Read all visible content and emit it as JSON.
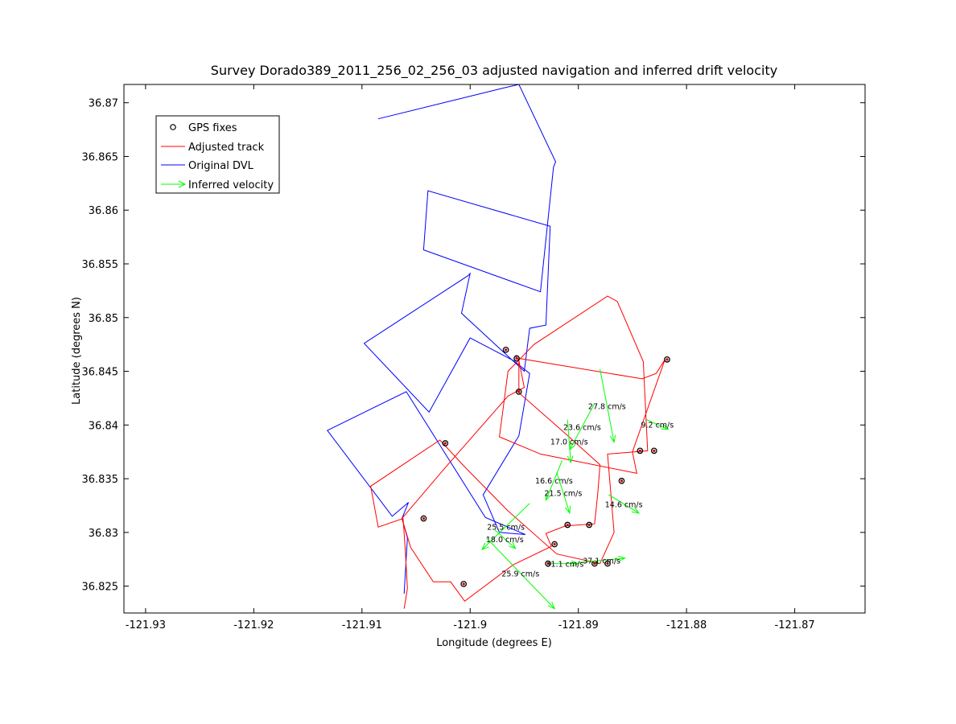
{
  "chart_data": {
    "type": "line",
    "title": "Survey Dorado389_2011_256_02_256_03 adjusted navigation and inferred drift velocity",
    "xlabel": "Longitude (degrees E)",
    "ylabel": "Latitude (degrees N)",
    "xlim": [
      -121.932,
      -121.8635
    ],
    "ylim": [
      36.8225,
      36.8717
    ],
    "xticks": [
      -121.93,
      -121.92,
      -121.91,
      -121.9,
      -121.89,
      -121.88,
      -121.87
    ],
    "xtick_labels": [
      "-121.93",
      "-121.92",
      "-121.91",
      "-121.9",
      "-121.89",
      "-121.88",
      "-121.87"
    ],
    "yticks": [
      36.825,
      36.83,
      36.835,
      36.84,
      36.845,
      36.85,
      36.855,
      36.86,
      36.865,
      36.87
    ],
    "ytick_labels": [
      "36.825",
      "36.83",
      "36.835",
      "36.84",
      "36.845",
      "36.85",
      "36.855",
      "36.86",
      "36.865",
      "36.87"
    ],
    "grid": false,
    "legend_position": "top-left",
    "legend": [
      {
        "label": "GPS fixes",
        "kind": "marker",
        "color": "#000000"
      },
      {
        "label": "Adjusted track",
        "kind": "line",
        "color": "#ff0000"
      },
      {
        "label": "Original DVL",
        "kind": "line",
        "color": "#0000ff"
      },
      {
        "label": "Inferred velocity",
        "kind": "arrow",
        "color": "#00ff00"
      }
    ],
    "series": [
      {
        "name": "Original DVL",
        "color": "#0000ff",
        "points": [
          [
            -121.9085,
            36.8685
          ],
          [
            -121.8968,
            36.8714
          ],
          [
            -121.8955,
            36.8717
          ],
          [
            -121.8921,
            36.8645
          ],
          [
            -121.8923,
            36.864
          ],
          [
            -121.8935,
            36.8524
          ],
          [
            -121.9043,
            36.8563
          ],
          [
            -121.9039,
            36.8618
          ],
          [
            -121.8926,
            36.8585
          ],
          [
            -121.893,
            36.8493
          ],
          [
            -121.8945,
            36.849
          ],
          [
            -121.895,
            36.845
          ],
          [
            -121.9008,
            36.8504
          ],
          [
            -121.9,
            36.8541
          ],
          [
            -121.9002,
            36.8539
          ],
          [
            -121.9098,
            36.8476
          ],
          [
            -121.9038,
            36.8412
          ],
          [
            -121.9,
            36.8481
          ],
          [
            -121.896,
            36.846
          ],
          [
            -121.8945,
            36.8448
          ],
          [
            -121.8955,
            36.839
          ],
          [
            -121.8988,
            36.8335
          ],
          [
            -121.8973,
            36.83
          ],
          [
            -121.8949,
            36.8298
          ],
          [
            -121.8986,
            36.8314
          ],
          [
            -121.9059,
            36.8431
          ],
          [
            -121.9132,
            36.8395
          ],
          [
            -121.9072,
            36.8315
          ],
          [
            -121.9057,
            36.8328
          ],
          [
            -121.9063,
            36.8313
          ],
          [
            -121.9058,
            36.8295
          ],
          [
            -121.9061,
            36.8243
          ]
        ]
      },
      {
        "name": "Adjusted track",
        "color": "#ff0000",
        "points": [
          [
            -121.9061,
            36.8229
          ],
          [
            -121.9058,
            36.8248
          ],
          [
            -121.906,
            36.8284
          ],
          [
            -121.9062,
            36.8313
          ],
          [
            -121.9085,
            36.8305
          ],
          [
            -121.9092,
            36.8343
          ],
          [
            -121.9028,
            36.8386
          ],
          [
            -121.9005,
            36.8361
          ],
          [
            -121.8965,
            36.832
          ],
          [
            -121.892,
            36.828
          ],
          [
            -121.888,
            36.8271
          ],
          [
            -121.8867,
            36.83
          ],
          [
            -121.8873,
            36.8373
          ],
          [
            -121.8836,
            36.8376
          ],
          [
            -121.884,
            36.8459
          ],
          [
            -121.8864,
            36.8515
          ],
          [
            -121.8873,
            36.852
          ],
          [
            -121.8941,
            36.8475
          ],
          [
            -121.8965,
            36.845
          ],
          [
            -121.8973,
            36.8389
          ],
          [
            -121.8935,
            36.8373
          ],
          [
            -121.8846,
            36.8355
          ],
          [
            -121.885,
            36.8375
          ],
          [
            -121.882,
            36.8461
          ],
          [
            -121.8828,
            36.8448
          ],
          [
            -121.8841,
            36.8443
          ],
          [
            -121.8955,
            36.8462
          ],
          [
            -121.8955,
            36.843
          ],
          [
            -121.8913,
            36.8393
          ],
          [
            -121.888,
            36.8363
          ],
          [
            -121.8882,
            36.8337
          ],
          [
            -121.8885,
            36.8308
          ],
          [
            -121.8912,
            36.8306
          ],
          [
            -121.893,
            36.8299
          ],
          [
            -121.8925,
            36.8287
          ],
          [
            -121.896,
            36.827
          ],
          [
            -121.9005,
            36.8236
          ],
          [
            -121.9018,
            36.8254
          ],
          [
            -121.9034,
            36.8254
          ],
          [
            -121.9055,
            36.8286
          ],
          [
            -121.9063,
            36.8313
          ],
          [
            -121.9025,
            36.8358
          ],
          [
            -121.8965,
            36.8427
          ],
          [
            -121.895,
            36.8435
          ],
          [
            -121.8955,
            36.846
          ],
          [
            -121.8958,
            36.8465
          ]
        ]
      }
    ],
    "gps_fixes": [
      [
        -121.8967,
        36.847
      ],
      [
        -121.8957,
        36.8462
      ],
      [
        -121.8955,
        36.8431
      ],
      [
        -121.8818,
        36.8461
      ],
      [
        -121.9023,
        36.8383
      ],
      [
        -121.8843,
        36.8376
      ],
      [
        -121.883,
        36.8376
      ],
      [
        -121.886,
        36.8348
      ],
      [
        -121.9043,
        36.8313
      ],
      [
        -121.889,
        36.8307
      ],
      [
        -121.891,
        36.8307
      ],
      [
        -121.8922,
        36.8289
      ],
      [
        -121.9006,
        36.8252
      ],
      [
        -121.8928,
        36.8271
      ],
      [
        -121.8885,
        36.8271
      ],
      [
        -121.8873,
        36.8271
      ]
    ],
    "velocity_vectors": [
      {
        "label": "27.8 cm/s",
        "x": -121.888,
        "y": 36.8452,
        "dx": 0.0013,
        "dy": -0.0068
      },
      {
        "label": "9.2 cm/s",
        "x": -121.8837,
        "y": 36.8405,
        "dx": 0.002,
        "dy": -0.0009
      },
      {
        "label": "23.6 cm/s",
        "x": -121.8885,
        "y": 36.842,
        "dx": -0.0023,
        "dy": -0.0043
      },
      {
        "label": "17.0 cm/s",
        "x": -121.891,
        "y": 36.8405,
        "dx": 0.0003,
        "dy": -0.004
      },
      {
        "label": "16.6 cm/s",
        "x": -121.8915,
        "y": 36.8367,
        "dx": -0.0015,
        "dy": -0.0037
      },
      {
        "label": "21.5 cm/s",
        "x": -121.892,
        "y": 36.8356,
        "dx": 0.0012,
        "dy": -0.0038
      },
      {
        "label": "14.6 cm/s",
        "x": -121.8872,
        "y": 36.8335,
        "dx": 0.0028,
        "dy": -0.0017
      },
      {
        "label": "25.5 cm/s",
        "x": -121.8945,
        "y": 36.8327,
        "dx": -0.0044,
        "dy": -0.0043
      },
      {
        "label": "18.0 cm/s",
        "x": -121.8978,
        "y": 36.8303,
        "dx": 0.002,
        "dy": -0.0018
      },
      {
        "label": "25.9 cm/s",
        "x": -121.8985,
        "y": 36.8295,
        "dx": 0.0063,
        "dy": -0.0066
      },
      {
        "label": "37.1 cm/s",
        "x": -121.89,
        "y": 36.8272,
        "dx": 0.0043,
        "dy": 0.0004
      },
      {
        "label": "31.1 cm/s",
        "x": -121.8925,
        "y": 36.8271,
        "dx": 0.0025,
        "dy": 0.0
      }
    ]
  }
}
